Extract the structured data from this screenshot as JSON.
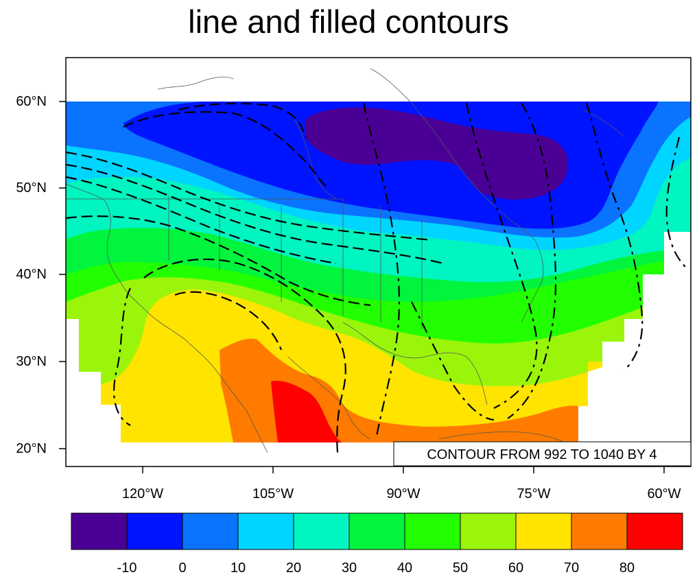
{
  "title": "line and filled contours",
  "map": {
    "lat_labels": [
      "60°N",
      "50°N",
      "40°N",
      "30°N",
      "20°N"
    ],
    "lon_labels": [
      "120°W",
      "105°W",
      "90°W",
      "75°W",
      "60°W"
    ],
    "info_label": "CONTOUR FROM 992 TO 1040 BY 4",
    "line_contours": {
      "min": 992,
      "max": 1040,
      "interval": 4
    }
  },
  "colorbar": {
    "labels": [
      "-10",
      "0",
      "10",
      "20",
      "30",
      "40",
      "50",
      "60",
      "70",
      "80"
    ],
    "colors": [
      "#4b0095",
      "#0014ff",
      "#0a73ff",
      "#00d5ff",
      "#00f5c0",
      "#00f53c",
      "#22ff00",
      "#9bf50b",
      "#ffe400",
      "#ff7b00",
      "#ff0000"
    ]
  }
}
